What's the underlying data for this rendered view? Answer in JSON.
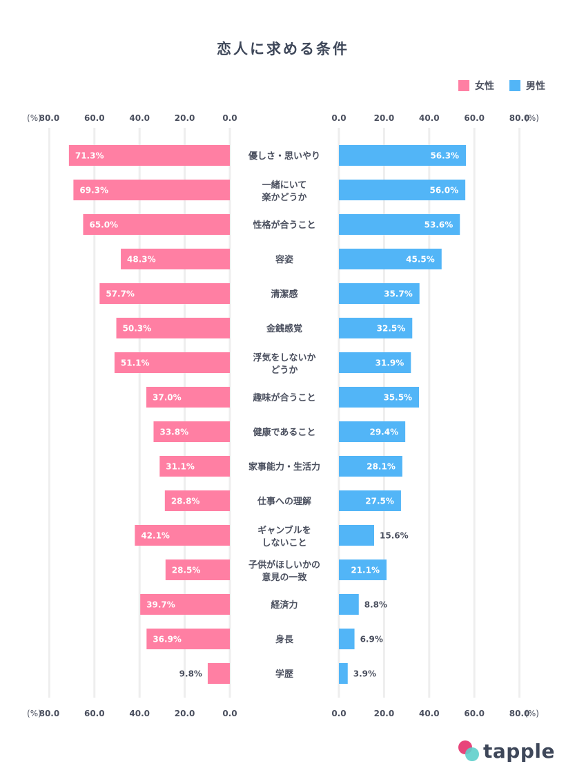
{
  "chart_data": {
    "type": "bar",
    "title": "恋人に求める条件",
    "layout": "butterfly",
    "unit": "(%)",
    "xlim": [
      0,
      80
    ],
    "ticks": [
      "80.0",
      "60.0",
      "40.0",
      "20.0",
      "0.0"
    ],
    "ticks_right": [
      "0.0",
      "20.0",
      "40.0",
      "60.0",
      "80.0"
    ],
    "grid": true,
    "legend": {
      "position": "top-right",
      "entries": [
        {
          "name": "女性",
          "color": "#ff7fa3"
        },
        {
          "name": "男性",
          "color": "#52b5f7"
        }
      ]
    },
    "categories": [
      [
        "優しさ・思いやり"
      ],
      [
        "一緒にいて",
        "楽かどうか"
      ],
      [
        "性格が合うこと"
      ],
      [
        "容姿"
      ],
      [
        "清潔感"
      ],
      [
        "金銭感覚"
      ],
      [
        "浮気をしないか",
        "どうか"
      ],
      [
        "趣味が合うこと"
      ],
      [
        "健康であること"
      ],
      [
        "家事能力・生活力"
      ],
      [
        "仕事への理解"
      ],
      [
        "ギャンブルを",
        "しないこと"
      ],
      [
        "子供がほしいかの",
        "意見の一致"
      ],
      [
        "経済力"
      ],
      [
        "身長"
      ],
      [
        "学歴"
      ]
    ],
    "series": [
      {
        "name": "女性",
        "side": "left",
        "color": "#ff7fa3",
        "values": [
          71.3,
          69.3,
          65.0,
          48.3,
          57.7,
          50.3,
          51.1,
          37.0,
          33.8,
          31.1,
          28.8,
          42.1,
          28.5,
          39.7,
          36.9,
          9.8
        ]
      },
      {
        "name": "男性",
        "side": "right",
        "color": "#52b5f7",
        "values": [
          56.3,
          56.0,
          53.6,
          45.5,
          35.7,
          32.5,
          31.9,
          35.5,
          29.4,
          28.1,
          27.5,
          15.6,
          21.1,
          8.8,
          6.9,
          3.9
        ]
      }
    ]
  },
  "brand": {
    "name": "tapple"
  }
}
